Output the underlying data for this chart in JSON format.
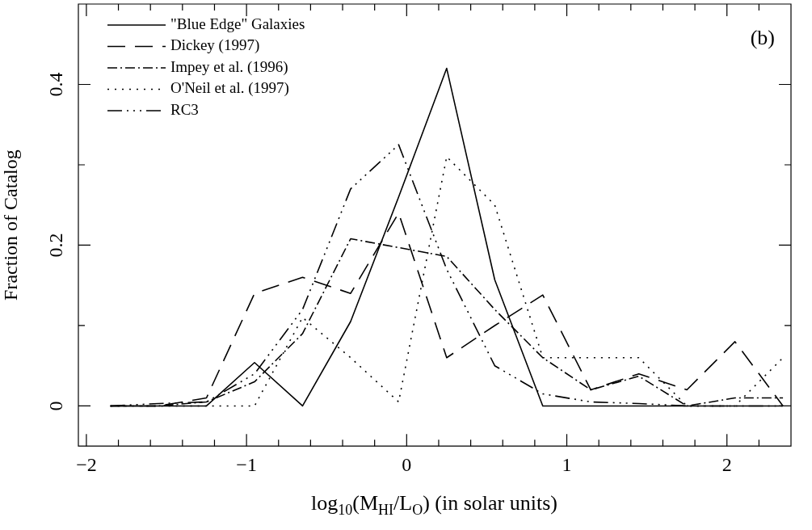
{
  "chart_data": {
    "type": "line",
    "xlabel": "log$_{10}$(M$_{HI}$/L$_{O}$) (in solar units)",
    "ylabel": "Fraction of Catalog",
    "annotations": [
      "(b)"
    ],
    "x": [
      -1.85,
      -1.55,
      -1.25,
      -0.95,
      -0.65,
      -0.35,
      -0.05,
      0.25,
      0.55,
      0.85,
      1.15,
      1.45,
      1.75,
      2.05,
      2.35
    ],
    "series": [
      {
        "name": "\"Blue Edge\" Galaxies",
        "color": "#000000",
        "line_style": "solid",
        "values": [
          0,
          0,
          0,
          0.054,
          0,
          0.105,
          0.26,
          0.42,
          0.157,
          0,
          0,
          0,
          0,
          0,
          0
        ]
      },
      {
        "name": "Dickey (1997)",
        "color": "#000000",
        "line_style": "dashed",
        "values": [
          0,
          0,
          0.01,
          0.14,
          0.16,
          0.14,
          0.24,
          0.06,
          0.1,
          0.138,
          0.02,
          0.04,
          0.02,
          0.08,
          0
        ]
      },
      {
        "name": "Impey et al. (1996)",
        "color": "#000000",
        "line_style": "dashdot",
        "values": [
          0,
          0,
          0.005,
          0.03,
          0.09,
          0.208,
          0.197,
          0.186,
          0.12,
          0.06,
          0.02,
          0.037,
          0,
          0.01,
          0.01
        ]
      },
      {
        "name": "O'Neil et al. (1997)",
        "color": "#000000",
        "line_style": "dotted",
        "values": [
          0,
          0,
          0,
          0,
          0.11,
          0.06,
          0.005,
          0.31,
          0.25,
          0.06,
          0.06,
          0.06,
          0,
          0,
          0.06
        ]
      },
      {
        "name": "RC3",
        "color": "#000000",
        "line_style": "dashdotdotdot",
        "values": [
          0,
          0.003,
          0.005,
          0.04,
          0.12,
          0.27,
          0.325,
          0.17,
          0.05,
          0.015,
          0.005,
          0.003,
          0,
          0,
          0
        ]
      }
    ],
    "xlim": [
      -2.05,
      2.4
    ],
    "ylim": [
      -0.05,
      0.5
    ],
    "xticks": [
      {
        "value": -2.0,
        "label": "−2"
      },
      {
        "value": -1.8,
        "label": null
      },
      {
        "value": -1.6,
        "label": null
      },
      {
        "value": -1.4,
        "label": null
      },
      {
        "value": -1.2,
        "label": null
      },
      {
        "value": -1.0,
        "label": "−1"
      },
      {
        "value": -0.8,
        "label": null
      },
      {
        "value": -0.6,
        "label": null
      },
      {
        "value": -0.4,
        "label": null
      },
      {
        "value": -0.2,
        "label": null
      },
      0,
      {
        "value": 0.2,
        "label": null
      },
      {
        "value": 0.4,
        "label": null
      },
      {
        "value": 0.6,
        "label": null
      },
      {
        "value": 0.8,
        "label": null
      },
      1,
      {
        "value": 1.2,
        "label": null
      },
      {
        "value": 1.4,
        "label": null
      },
      {
        "value": 1.6,
        "label": null
      },
      {
        "value": 1.8,
        "label": null
      },
      2,
      {
        "value": 2.2,
        "label": null
      }
    ],
    "yticks": [
      0,
      {
        "value": 0.1,
        "label": null
      },
      0.2,
      {
        "value": 0.3,
        "label": null
      },
      0.4
    ],
    "grid": false,
    "legend": "top left",
    "marker": "none"
  }
}
